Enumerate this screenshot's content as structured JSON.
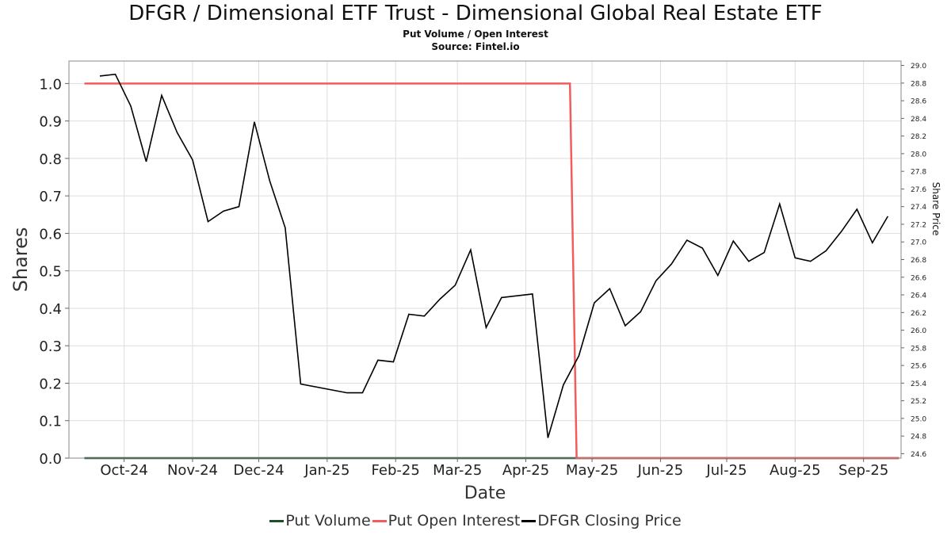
{
  "chart_data": {
    "type": "line",
    "title": "DFGR / Dimensional ETF Trust - Dimensional Global Real Estate ETF",
    "subtitle": "Put Volume / Open Interest",
    "source": "Source: Fintel.io",
    "xlabel": "Date",
    "ylabel": "Shares",
    "y2label": "Share Price",
    "x_ticks": [
      {
        "date": "2024-10-01",
        "label": "Oct-24"
      },
      {
        "date": "2024-11-01",
        "label": "Nov-24"
      },
      {
        "date": "2024-12-01",
        "label": "Dec-24"
      },
      {
        "date": "2025-01-01",
        "label": "Jan-25"
      },
      {
        "date": "2025-02-01",
        "label": "Feb-25"
      },
      {
        "date": "2025-03-01",
        "label": "Mar-25"
      },
      {
        "date": "2025-04-01",
        "label": "Apr-25"
      },
      {
        "date": "2025-05-01",
        "label": "May-25"
      },
      {
        "date": "2025-06-01",
        "label": "Jun-25"
      },
      {
        "date": "2025-07-01",
        "label": "Jul-25"
      },
      {
        "date": "2025-08-01",
        "label": "Aug-25"
      },
      {
        "date": "2025-09-01",
        "label": "Sep-25"
      }
    ],
    "xlim": [
      "2024-09-06",
      "2025-09-18"
    ],
    "ylim": [
      0,
      1.06
    ],
    "y_ticks": [
      0.0,
      0.1,
      0.2,
      0.3,
      0.4,
      0.5,
      0.6,
      0.7,
      0.8,
      0.9,
      1.0
    ],
    "y_tick_labels": [
      "0.0",
      "0.1",
      "0.2",
      "0.3",
      "0.4",
      "0.5",
      "0.6",
      "0.7",
      "0.8",
      "0.9",
      "1.0"
    ],
    "y2lim": [
      24.55,
      29.05
    ],
    "y2_ticks": [
      24.6,
      24.8,
      25.0,
      25.2,
      25.4,
      25.6,
      25.8,
      26.0,
      26.2,
      26.4,
      26.6,
      26.8,
      27.0,
      27.2,
      27.4,
      27.6,
      27.8,
      28.0,
      28.2,
      28.4,
      28.6,
      28.8,
      29.0
    ],
    "y2_tick_labels": [
      "24.6",
      "24.8",
      "25.0",
      "25.2",
      "25.4",
      "25.6",
      "25.8",
      "26.0",
      "26.2",
      "26.4",
      "26.6",
      "26.8",
      "27.0",
      "27.2",
      "27.4",
      "27.6",
      "27.8",
      "28.0",
      "28.2",
      "28.4",
      "28.6",
      "28.8",
      "29.0"
    ],
    "grid": true,
    "legend_position": "bottom",
    "series": [
      {
        "name": "Put Volume",
        "axis": "left",
        "color": "#1f4e2c",
        "x": [
          "2024-09-13",
          "2025-09-17"
        ],
        "values": [
          0,
          0
        ]
      },
      {
        "name": "Put Open Interest",
        "axis": "left",
        "color": "#f25c5c",
        "x": [
          "2024-09-13",
          "2025-04-21",
          "2025-04-24",
          "2025-09-17"
        ],
        "values": [
          1,
          1,
          0,
          0
        ]
      },
      {
        "name": "DFGR Closing Price",
        "axis": "right",
        "color": "#000000",
        "x": [
          "2024-09-20",
          "2024-09-27",
          "2024-10-04",
          "2024-10-11",
          "2024-10-18",
          "2024-10-25",
          "2024-11-01",
          "2024-11-08",
          "2024-11-15",
          "2024-11-22",
          "2024-11-29",
          "2024-12-06",
          "2024-12-13",
          "2024-12-20",
          "2025-01-10",
          "2025-01-17",
          "2025-01-24",
          "2025-01-31",
          "2025-02-07",
          "2025-02-14",
          "2025-02-21",
          "2025-02-28",
          "2025-03-07",
          "2025-03-14",
          "2025-03-21",
          "2025-04-04",
          "2025-04-11",
          "2025-04-18",
          "2025-04-25",
          "2025-05-02",
          "2025-05-09",
          "2025-05-16",
          "2025-05-23",
          "2025-05-30",
          "2025-06-06",
          "2025-06-13",
          "2025-06-20",
          "2025-06-27",
          "2025-07-04",
          "2025-07-11",
          "2025-07-18",
          "2025-07-25",
          "2025-08-01",
          "2025-08-08",
          "2025-08-15",
          "2025-08-22",
          "2025-08-29",
          "2025-09-05",
          "2025-09-12"
        ],
        "values": [
          28.88,
          28.9,
          28.54,
          27.91,
          28.66,
          28.24,
          27.93,
          27.23,
          27.35,
          27.4,
          28.36,
          27.69,
          27.16,
          25.39,
          25.29,
          25.29,
          25.66,
          25.64,
          26.18,
          26.16,
          26.35,
          26.51,
          26.91,
          26.03,
          26.37,
          26.41,
          24.78,
          25.38,
          25.71,
          26.31,
          26.47,
          26.05,
          26.21,
          26.56,
          26.75,
          27.02,
          26.93,
          26.62,
          27.01,
          26.78,
          26.88,
          27.43,
          26.82,
          26.78,
          26.9,
          27.12,
          27.37,
          26.99,
          27.29
        ]
      }
    ]
  }
}
